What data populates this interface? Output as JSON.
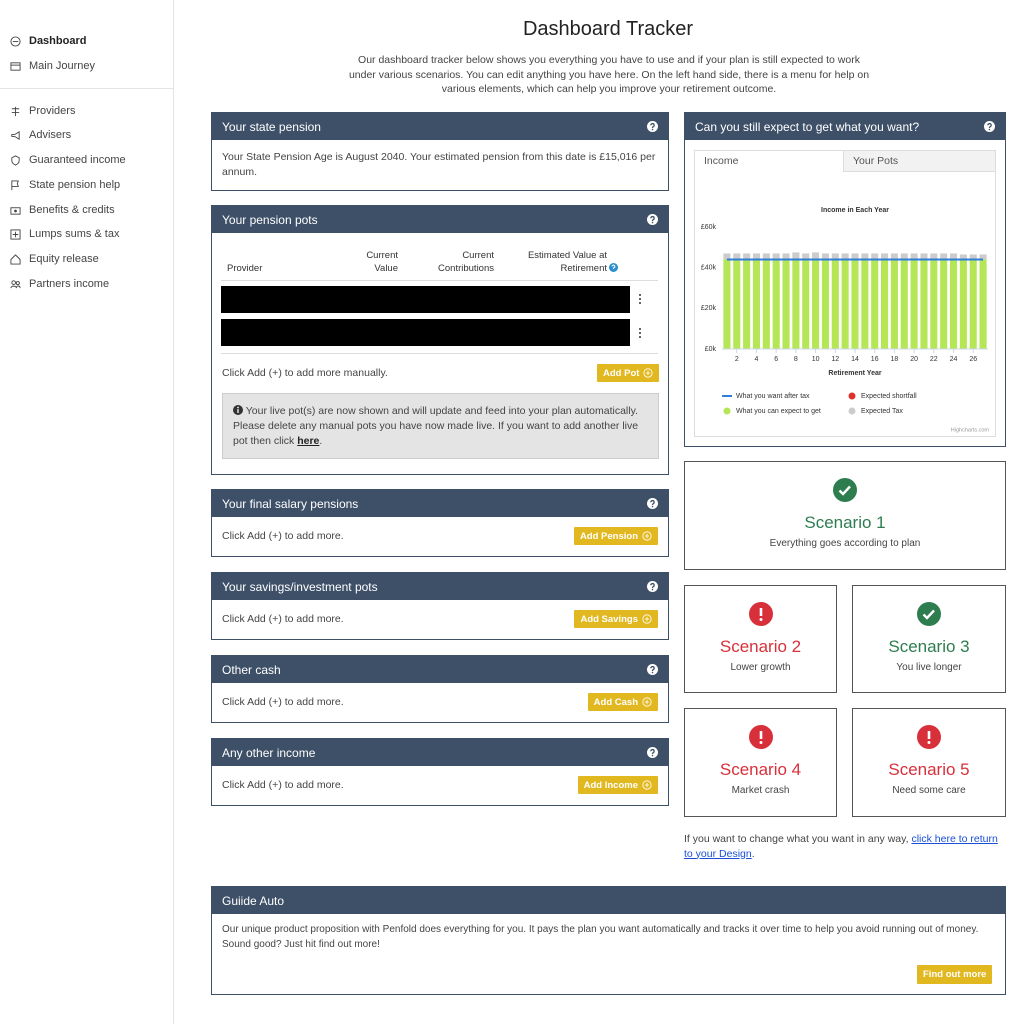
{
  "sidebar": {
    "groups": [
      [
        "Dashboard",
        "Main Journey"
      ],
      [
        "Providers",
        "Advisers",
        "Guaranteed income",
        "State pension help",
        "Benefits & credits",
        "Lumps sums & tax",
        "Equity release",
        "Partners income"
      ]
    ]
  },
  "header": {
    "title": "Dashboard Tracker",
    "intro": "Our dashboard tracker below shows you everything you have to use and if your plan is still expected to work under various scenarios. You can edit anything you have here. On the left hand side, there is a menu for help on various elements, which can help you improve your retirement outcome."
  },
  "state_pension": {
    "title": "Your state pension",
    "text": "Your State Pension Age is August 2040. Your estimated pension from this date is £15,016 per annum."
  },
  "pension_pots": {
    "title": "Your pension pots",
    "columns": [
      "Provider",
      "Current Value",
      "Current Contributions",
      "Estimated Value at Retirement"
    ],
    "hint": "Click Add (+) to add more manually.",
    "button": "Add Pot",
    "info": {
      "text": "Your live pot(s) are now shown and will update and feed into your plan automatically. Please delete any manual pots you have now made live. If you want to add another live pot then click ",
      "link": "here",
      "end": "."
    }
  },
  "sections": [
    {
      "title": "Your final salary pensions",
      "text": "Click Add (+) to add more.",
      "button": "Add Pension"
    },
    {
      "title": "Your savings/investment pots",
      "text": "Click Add (+) to add more.",
      "button": "Add Savings"
    },
    {
      "title": "Other cash",
      "text": "Click Add (+) to add more.",
      "button": "Add Cash"
    },
    {
      "title": "Any other income",
      "text": "Click Add (+) to add more.",
      "button": "Add Income"
    }
  ],
  "outcome": {
    "title": "Can you still expect to get what you want?",
    "tabs": [
      "Income",
      "Your Pots"
    ],
    "credit": "Highcharts.com"
  },
  "chart_data": {
    "type": "bar",
    "stacked": true,
    "title": "Income in Each Year",
    "x_label": "Retirement Year",
    "x": [
      1,
      2,
      3,
      4,
      5,
      6,
      7,
      8,
      9,
      10,
      11,
      12,
      13,
      14,
      15,
      16,
      17,
      18,
      19,
      20,
      21,
      22,
      23,
      24,
      25,
      26,
      27
    ],
    "xlim": [
      0.5,
      27.5
    ],
    "xticks": [
      2,
      4,
      6,
      8,
      10,
      12,
      14,
      16,
      18,
      20,
      22,
      24,
      26
    ],
    "ylim": [
      0,
      60000
    ],
    "yticks": [
      {
        "value": 0,
        "label": "£0k"
      },
      {
        "value": 20000,
        "label": "£20k"
      },
      {
        "value": 40000,
        "label": "£40k"
      },
      {
        "value": 60000,
        "label": "£60k"
      }
    ],
    "grid": false,
    "legend": "bottom",
    "series": [
      {
        "name": "What you want after tax",
        "type": "line",
        "color": "#2f7ed8",
        "values": [
          44000,
          44000,
          44000,
          44000,
          44000,
          44000,
          44000,
          44000,
          44000,
          44000,
          44000,
          44000,
          44000,
          44000,
          44000,
          44000,
          44000,
          44000,
          44000,
          44000,
          44000,
          44000,
          44000,
          44000,
          44000,
          44000,
          44000
        ]
      },
      {
        "name": "Expected shortfall",
        "type": "bar",
        "color": "#e0322d",
        "values": [
          0,
          0,
          0,
          0,
          0,
          0,
          0,
          0,
          0,
          0,
          0,
          0,
          0,
          0,
          0,
          0,
          0,
          0,
          0,
          0,
          0,
          0,
          0,
          0,
          0,
          0,
          0
        ]
      },
      {
        "name": "What you can expect to get",
        "type": "bar",
        "color": "#b5e655",
        "values": [
          44000,
          44000,
          44000,
          44000,
          44000,
          44000,
          44000,
          44000,
          44000,
          44000,
          44000,
          44000,
          44000,
          44000,
          44000,
          44000,
          44000,
          44000,
          44000,
          44000,
          44000,
          44000,
          44000,
          44000,
          44000,
          44000,
          44000
        ]
      },
      {
        "name": "Expected Tax",
        "type": "bar",
        "color": "#cccccc",
        "values": [
          3000,
          3000,
          3000,
          3000,
          3000,
          3000,
          3000,
          3500,
          3000,
          3500,
          3000,
          3000,
          3000,
          3000,
          3000,
          3000,
          3000,
          3000,
          3000,
          3000,
          3000,
          3000,
          3000,
          3000,
          2500,
          2500,
          2500
        ]
      }
    ]
  },
  "scenarios": [
    {
      "title": "Scenario 1",
      "subtitle": "Everything goes according to plan",
      "color": "#2e7d4f",
      "icon": "check"
    },
    {
      "title": "Scenario 2",
      "subtitle": "Lower growth",
      "color": "#d7303b",
      "icon": "exclamation"
    },
    {
      "title": "Scenario 3",
      "subtitle": "You live longer",
      "color": "#2e7d4f",
      "icon": "check"
    },
    {
      "title": "Scenario 4",
      "subtitle": "Market crash",
      "color": "#d7303b",
      "icon": "exclamation"
    },
    {
      "title": "Scenario 5",
      "subtitle": "Need some care",
      "color": "#d7303b",
      "icon": "exclamation"
    }
  ],
  "design_note": {
    "text": "If you want to change what you want in any way, ",
    "link": "click here to return to your Design",
    "end": "."
  },
  "guide_auto": {
    "title": "Guiide Auto",
    "text": "Our unique product proposition with Penfold does everything for you. It pays the plan you want automatically and tracks it over time to help you avoid running out of money. Sound good? Just hit find out more!",
    "button": "Find out more"
  }
}
